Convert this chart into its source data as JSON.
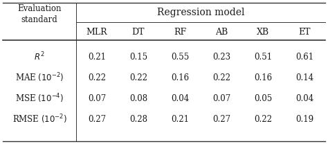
{
  "header_group": "Regression model",
  "col_header": [
    "MLR",
    "DT",
    "RF",
    "AB",
    "XB",
    "ET"
  ],
  "row_label_top": "Evaluation",
  "row_label_bot": "standard",
  "row_labels_math": [
    "$R^2$",
    "MAE $(10^{-2})$",
    "MSE $(10^{-4})$",
    "RMSE $(10^{-2})$"
  ],
  "data": [
    [
      0.21,
      0.15,
      0.55,
      0.23,
      0.51,
      0.61
    ],
    [
      0.22,
      0.22,
      0.16,
      0.22,
      0.16,
      0.14
    ],
    [
      0.07,
      0.08,
      0.04,
      0.07,
      0.05,
      0.04
    ],
    [
      0.27,
      0.28,
      0.21,
      0.27,
      0.22,
      0.19
    ]
  ],
  "bg_color": "#ffffff",
  "text_color": "#1a1a1a",
  "line_color": "#333333",
  "font_size": 8.5,
  "header_font_size": 10.0,
  "col_header_font_size": 9.0
}
